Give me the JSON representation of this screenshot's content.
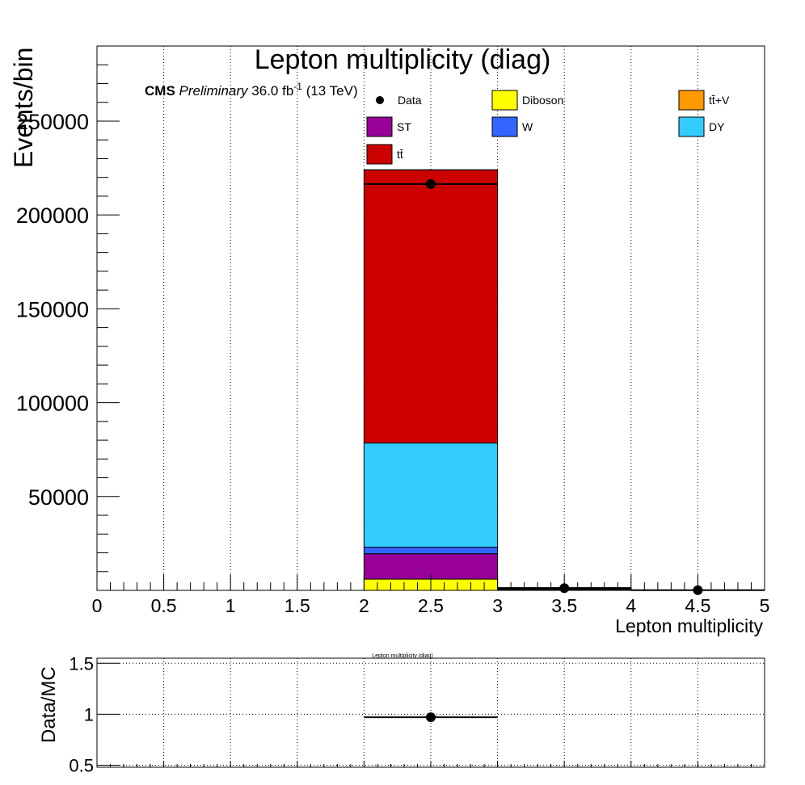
{
  "chart_data": [
    {
      "type": "bar",
      "stacked": true,
      "title": "Lepton multiplicity (diag)",
      "cms_label": {
        "bold": "CMS",
        "italic": "Preliminary",
        "lumi": "36.0 fb",
        "lumi_sup": "-1",
        "energy": "(13 TeV)"
      },
      "xlabel": "Lepton multiplicity",
      "ylabel": "Events/bin",
      "xlim": [
        0,
        5
      ],
      "ylim": [
        0,
        290000
      ],
      "x_ticks": [
        "0",
        "0.5",
        "1",
        "1.5",
        "2",
        "2.5",
        "3",
        "3.5",
        "4",
        "4.5",
        "5"
      ],
      "y_ticks": [
        {
          "v": 50000,
          "label": "50000"
        },
        {
          "v": 100000,
          "label": "100000"
        },
        {
          "v": 150000,
          "label": "150000"
        },
        {
          "v": 200000,
          "label": "200000"
        },
        {
          "v": 250000,
          "label": "250000"
        }
      ],
      "bins": [
        [
          0,
          1
        ],
        [
          1,
          2
        ],
        [
          2,
          3
        ],
        [
          3,
          4
        ],
        [
          4,
          5
        ]
      ],
      "grid_x": true,
      "legend_position": "top",
      "series": [
        {
          "name": "Diboson",
          "color": "#ffff00",
          "values": [
            0,
            0,
            6000,
            150,
            20
          ]
        },
        {
          "name": "ST",
          "color": "#990099",
          "values": [
            0,
            0,
            13500,
            80,
            5
          ]
        },
        {
          "name": "W",
          "color": "#3366ff",
          "values": [
            0,
            0,
            3500,
            50,
            5
          ]
        },
        {
          "name": "DY",
          "color": "#33ccff",
          "values": [
            0,
            0,
            55500,
            400,
            30
          ]
        },
        {
          "name": "tt̄",
          "color": "#cc0000",
          "values": [
            0,
            0,
            145500,
            700,
            40
          ]
        },
        {
          "name": "tt̄+V",
          "color": "#ff9900",
          "values": [
            0,
            0,
            80,
            30,
            5
          ]
        }
      ],
      "data_points": {
        "name": "Data",
        "x": [
          2.5,
          3.5,
          4.5
        ],
        "y": [
          216500,
          1200,
          100
        ],
        "xerr": [
          0.5,
          0.5,
          0.5
        ]
      },
      "legend": [
        {
          "label": "Data",
          "kind": "marker"
        },
        {
          "label": "Diboson",
          "color": "#ffff00"
        },
        {
          "label": "tt̄+V",
          "color": "#ff9900"
        },
        {
          "label": "ST",
          "color": "#990099"
        },
        {
          "label": "W",
          "color": "#3366ff"
        },
        {
          "label": "DY",
          "color": "#33ccff"
        },
        {
          "label": "tt̄",
          "color": "#cc0000"
        }
      ]
    },
    {
      "type": "scatter",
      "title": "Lepton multiplicity (diag)",
      "xlabel": "",
      "ylabel": "Data/MC",
      "xlim": [
        0,
        5
      ],
      "ylim": [
        0.48,
        1.55
      ],
      "y_ticks": [
        {
          "v": 0.5,
          "label": "0.5"
        },
        {
          "v": 1,
          "label": "1"
        },
        {
          "v": 1.5,
          "label": "1.5"
        }
      ],
      "grid_x": true,
      "grid_y": true,
      "points": [
        {
          "x": 2.5,
          "y": 0.97,
          "xerr": 0.5
        }
      ]
    }
  ]
}
